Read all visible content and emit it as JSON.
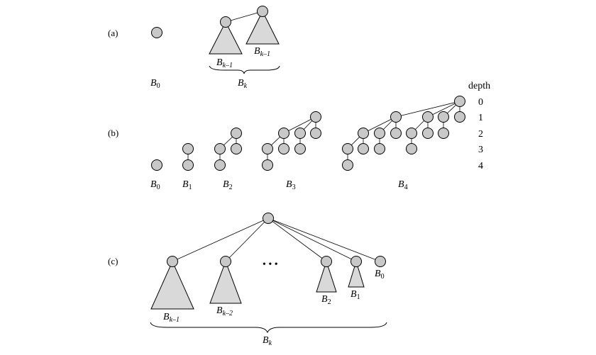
{
  "panels": {
    "a": "(a)",
    "b": "(b)",
    "c": "(c)"
  },
  "labels": {
    "B": "B",
    "sub_0": "0",
    "sub_1": "1",
    "sub_2": "2",
    "sub_3": "3",
    "sub_4": "4",
    "sub_k": "k",
    "sub_k_minus_1": "k–1",
    "sub_k_minus_2": "k–2"
  },
  "depth": {
    "title": "depth",
    "values": [
      "0",
      "1",
      "2",
      "3",
      "4"
    ]
  },
  "ellipsis": "• • •"
}
